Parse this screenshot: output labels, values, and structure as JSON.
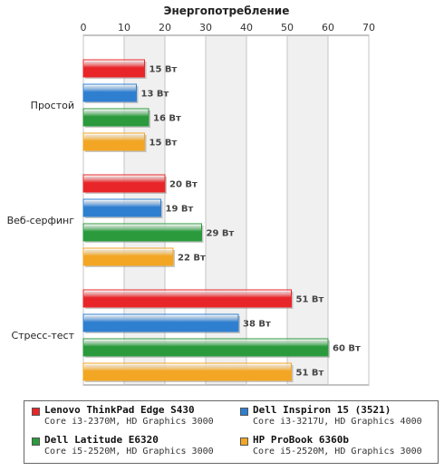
{
  "chart_data": {
    "type": "bar",
    "orientation": "horizontal",
    "title": "Энергопотребление",
    "categories": [
      "Простой",
      "Веб-серфинг",
      "Стресс-тест"
    ],
    "xlim": [
      0,
      70
    ],
    "xticks": [
      0,
      10,
      20,
      30,
      40,
      50,
      60,
      70
    ],
    "grid": true,
    "value_suffix": " Вт",
    "series": [
      {
        "name": "Lenovo ThinkPad Edge S430",
        "sub": "Core i3-2370M, HD Graphics 3000",
        "color": "#e8262a",
        "values": [
          15,
          20,
          51
        ]
      },
      {
        "name": "Dell Inspiron 15 (3521)",
        "sub": "Core i3-3217U, HD Graphics 4000",
        "color": "#2f7fd0",
        "values": [
          13,
          19,
          38
        ]
      },
      {
        "name": "Dell Latitude E6320",
        "sub": "Core i5-2520M, HD Graphics 3000",
        "color": "#2a9a3c",
        "values": [
          16,
          29,
          60
        ]
      },
      {
        "name": "HP ProBook 6360b",
        "sub": "Core i5-2520M, HD Graphics 3000",
        "color": "#f2a623",
        "values": [
          15,
          22,
          51
        ]
      }
    ],
    "value_labels": [
      [
        "15 Вт",
        "20 Вт",
        "51 Вт"
      ],
      [
        "13 Вт",
        "19 Вт",
        "38 Вт"
      ],
      [
        "16 Вт",
        "29 Вт",
        "60 Вт"
      ],
      [
        "15 Вт",
        "22 Вт",
        "51 Вт"
      ]
    ],
    "legend": "bottom"
  }
}
